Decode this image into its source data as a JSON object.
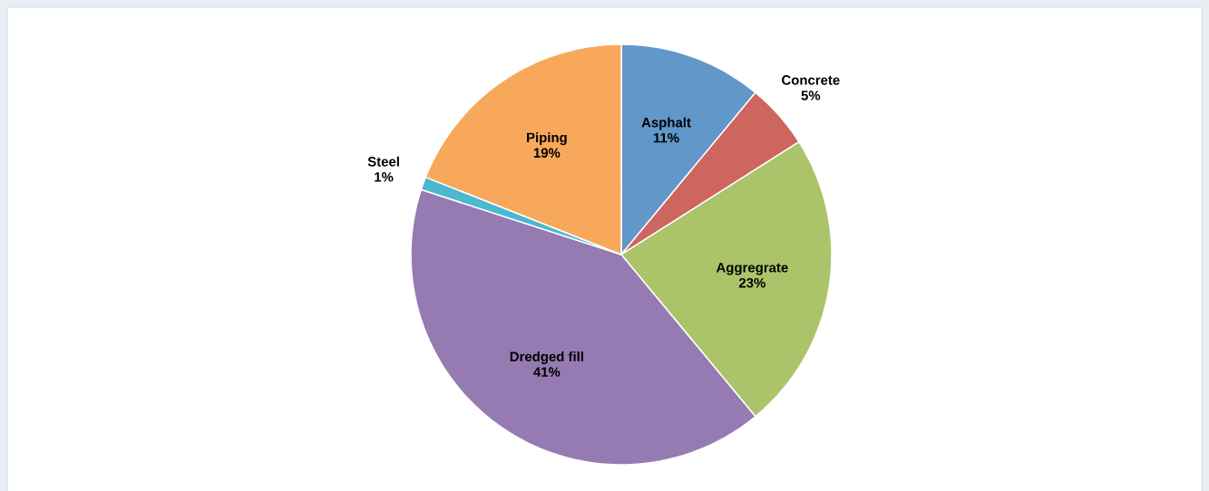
{
  "chart_data": {
    "type": "pie",
    "categories": [
      "Asphalt",
      "Concrete",
      "Aggregrate",
      "Dredged fill",
      "Steel",
      "Piping"
    ],
    "values": [
      11,
      5,
      23,
      41,
      1,
      19
    ],
    "colors": [
      "#6297c9",
      "#cd665f",
      "#abc46a",
      "#957bb1",
      "#4bb8d0",
      "#f8a85a"
    ],
    "value_labels": [
      "11%",
      "5%",
      "23%",
      "41%",
      "1%",
      "19%"
    ]
  }
}
